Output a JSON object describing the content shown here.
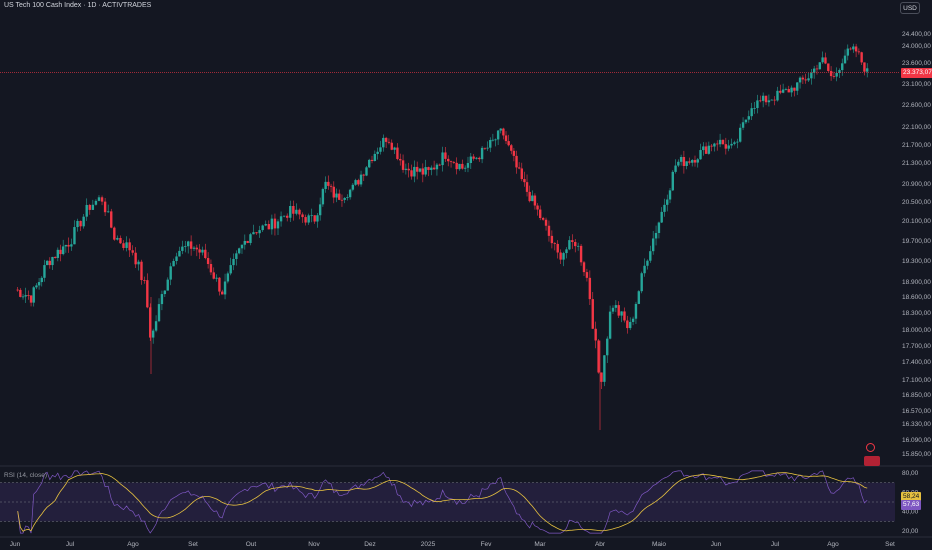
{
  "header": {
    "title": "US Tech 100 Cash Index · 1D · ACTIVTRADES",
    "currency": "USD"
  },
  "rsi_panel": {
    "title": "RSI (14, close)",
    "value_label": "58,24",
    "value_label2": "57,63"
  },
  "last_price_label": "23.373,07",
  "icons": {
    "clock": "alert-clock-icon",
    "flag": "us-flag-icon"
  },
  "colors": {
    "background": "#141722",
    "up": "#26a69a",
    "down": "#f23645",
    "rsi_line": "#7e57c2",
    "rsi_ma": "#e5c040",
    "rsi_band": "#2a2347"
  },
  "chart_data": [
    {
      "type": "candlestick",
      "title": "US Tech 100 Cash Index · 1D · ACTIVTRADES",
      "x_tick_labels": [
        "Jun",
        "Jul",
        "Ago",
        "Set",
        "Out",
        "Nov",
        "Dez",
        "2025",
        "Fev",
        "Mar",
        "Abr",
        "Maio",
        "Jun",
        "Jul",
        "Ago",
        "Set"
      ],
      "y_tick_labels": [
        24400,
        24000,
        23600,
        23100,
        22600,
        22100,
        21700,
        21300,
        20900,
        20500,
        20100,
        19700,
        19300,
        18900,
        18600,
        18300,
        18000,
        17700,
        17400,
        17100,
        16850,
        16570,
        16330,
        16090,
        15850
      ],
      "y_tick_text": [
        "24.400,00",
        "24.000,00",
        "23.600,00",
        "23.100,00",
        "22.600,00",
        "22.100,00",
        "21.700,00",
        "21.300,00",
        "20.900,00",
        "20.500,00",
        "20.100,00",
        "19.700,00",
        "19.300,00",
        "18.900,00",
        "18.600,00",
        "18.300,00",
        "18.000,00",
        "17.700,00",
        "17.400,00",
        "17.100,00",
        "16.850,00",
        "16.570,00",
        "16.330,00",
        "16.090,00",
        "15.850,00"
      ],
      "last_price": 23373.07,
      "price_path": [
        {
          "month": 0,
          "close": 18750
        },
        {
          "month": 0.3,
          "close": 18600
        },
        {
          "month": 0.6,
          "close": 19300
        },
        {
          "month": 1.0,
          "close": 19700
        },
        {
          "month": 1.3,
          "close": 20400
        },
        {
          "month": 1.5,
          "close": 20600
        },
        {
          "month": 1.7,
          "close": 19800
        },
        {
          "month": 2.0,
          "close": 19500
        },
        {
          "month": 2.2,
          "close": 18800
        },
        {
          "month": 2.3,
          "close": 17800
        },
        {
          "month": 2.5,
          "close": 18700
        },
        {
          "month": 2.7,
          "close": 19500
        },
        {
          "month": 3.0,
          "close": 19600
        },
        {
          "month": 3.2,
          "close": 19400
        },
        {
          "month": 3.5,
          "close": 18700
        },
        {
          "month": 3.8,
          "close": 19500
        },
        {
          "month": 4.0,
          "close": 19900
        },
        {
          "month": 4.3,
          "close": 20000
        },
        {
          "month": 4.6,
          "close": 20300
        },
        {
          "month": 5.0,
          "close": 20100
        },
        {
          "month": 5.2,
          "close": 20900
        },
        {
          "month": 5.4,
          "close": 20600
        },
        {
          "month": 5.7,
          "close": 20800
        },
        {
          "month": 6.0,
          "close": 21400
        },
        {
          "month": 6.3,
          "close": 21900
        },
        {
          "month": 6.6,
          "close": 21200
        },
        {
          "month": 7.0,
          "close": 21100
        },
        {
          "month": 7.3,
          "close": 21500
        },
        {
          "month": 7.6,
          "close": 21200
        },
        {
          "month": 8.0,
          "close": 21600
        },
        {
          "month": 8.3,
          "close": 22000
        },
        {
          "month": 8.6,
          "close": 21100
        },
        {
          "month": 9.0,
          "close": 20200
        },
        {
          "month": 9.3,
          "close": 19400
        },
        {
          "month": 9.6,
          "close": 19700
        },
        {
          "month": 9.8,
          "close": 18900
        },
        {
          "month": 10.0,
          "close": 17000
        },
        {
          "month": 10.2,
          "close": 18500
        },
        {
          "month": 10.5,
          "close": 18000
        },
        {
          "month": 10.8,
          "close": 19400
        },
        {
          "month": 11.0,
          "close": 20100
        },
        {
          "month": 11.3,
          "close": 21300
        },
        {
          "month": 11.6,
          "close": 21400
        },
        {
          "month": 12.0,
          "close": 21800
        },
        {
          "month": 12.3,
          "close": 21600
        },
        {
          "month": 12.6,
          "close": 22600
        },
        {
          "month": 13.0,
          "close": 22800
        },
        {
          "month": 13.3,
          "close": 23000
        },
        {
          "month": 13.6,
          "close": 23300
        },
        {
          "month": 13.8,
          "close": 23700
        },
        {
          "month": 14.0,
          "close": 23200
        },
        {
          "month": 14.2,
          "close": 23800
        },
        {
          "month": 14.4,
          "close": 23900
        },
        {
          "month": 14.6,
          "close": 23373
        }
      ]
    },
    {
      "type": "line",
      "title": "RSI (14, close)",
      "y_tick_labels": [
        80,
        60,
        40,
        20
      ],
      "y_tick_text": [
        "80,00",
        "60,00",
        "40,00",
        "20,00"
      ],
      "bands": [
        70,
        30
      ],
      "ylim": [
        15,
        85
      ],
      "rsi_ma_last": 58.24,
      "rsi_last": 57.63
    }
  ]
}
